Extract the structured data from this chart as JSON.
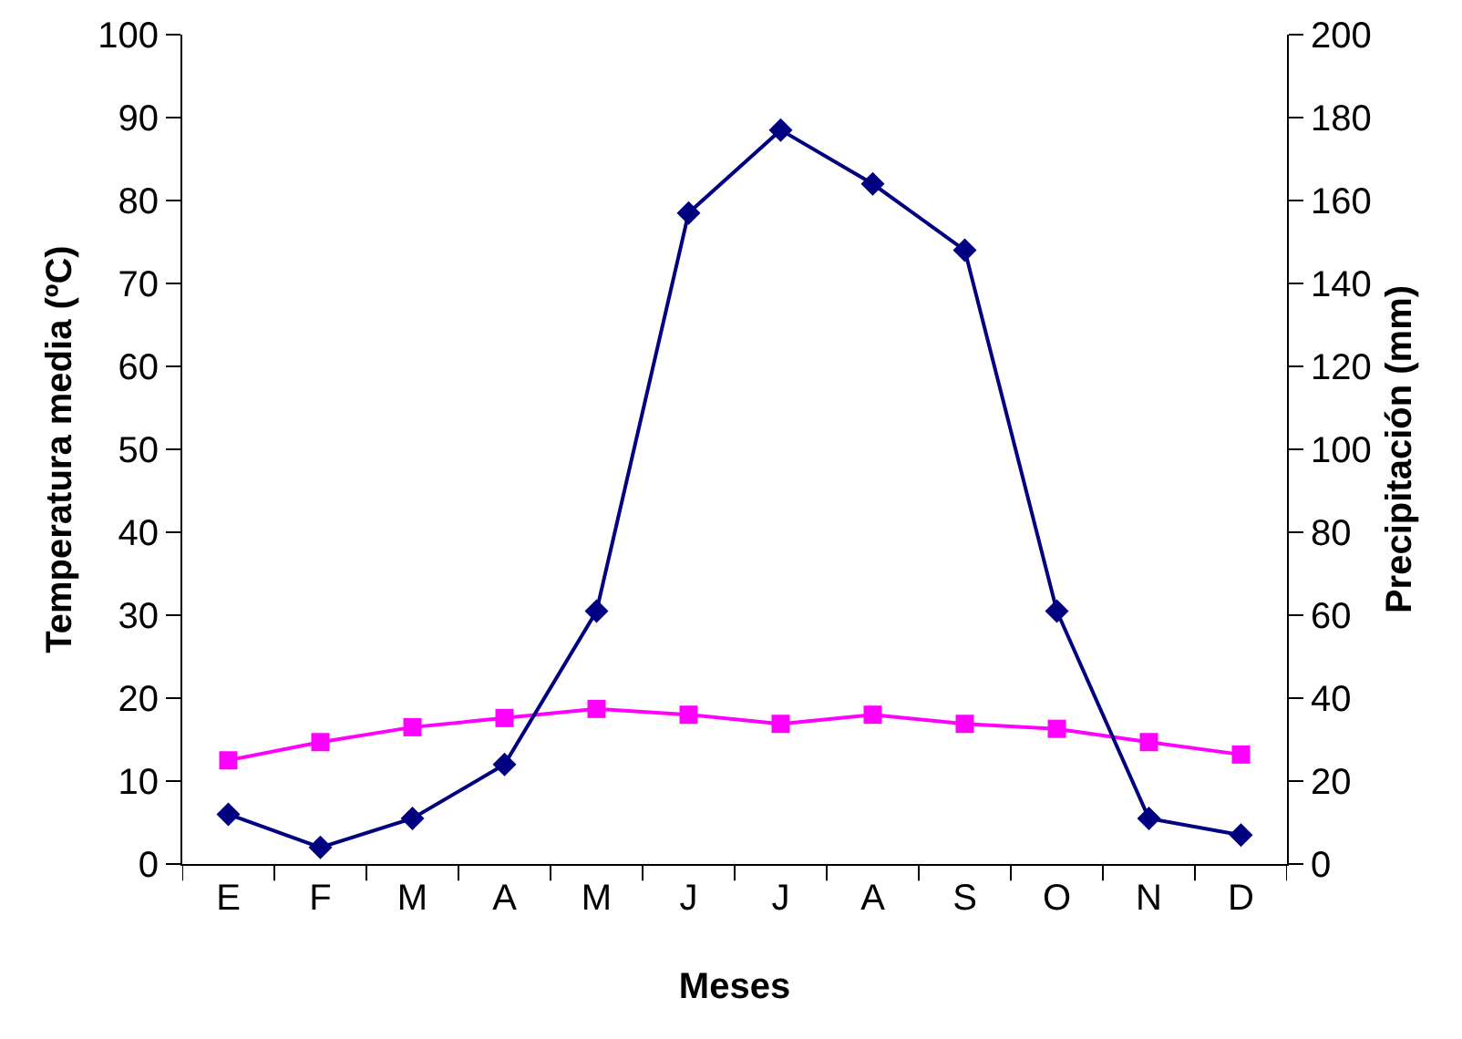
{
  "chart_data": {
    "type": "line",
    "xlabel": "Meses",
    "ylabel": "Temperatura media (ºC)",
    "y2label": "Precipitación (mm)",
    "categories": [
      "E",
      "F",
      "M",
      "A",
      "M",
      "J",
      "J",
      "A",
      "S",
      "O",
      "N",
      "D"
    ],
    "series": [
      {
        "color": "#ff00ff",
        "marker": "square",
        "values": [
          12.5,
          14.7,
          16.5,
          17.6,
          18.7,
          18,
          16.9,
          18,
          16.9,
          16.3,
          14.7,
          13.2
        ]
      },
      {
        "color": "#000080",
        "marker": "diamond",
        "axis": "y2",
        "values": [
          12,
          4,
          11,
          24,
          61,
          157,
          177,
          164,
          148,
          61,
          11,
          7
        ]
      }
    ],
    "ylim": [
      0,
      100
    ],
    "yticks": [
      0,
      10,
      20,
      30,
      40,
      50,
      60,
      70,
      80,
      90,
      100
    ],
    "y2lim": [
      0,
      200
    ],
    "y2ticks": [
      0,
      20,
      40,
      60,
      80,
      100,
      120,
      140,
      160,
      180,
      200
    ],
    "grid": false
  }
}
